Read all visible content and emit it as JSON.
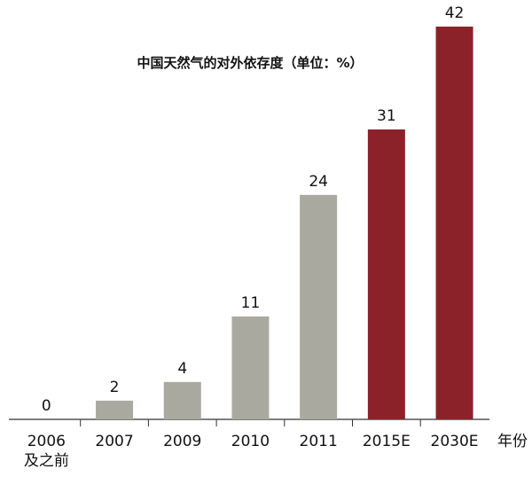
{
  "chart_data": {
    "type": "bar",
    "title": "中国天然气的对外依存度（单位：%）",
    "categories": [
      "2006\n及之前",
      "2007",
      "2009",
      "2010",
      "2011",
      "2015E",
      "2030E"
    ],
    "values": [
      0,
      2,
      4,
      11,
      24,
      31,
      42
    ],
    "colors": [
      "#a9a99f",
      "#a9a99f",
      "#a9a99f",
      "#a9a99f",
      "#a9a99f",
      "#8c2229",
      "#8c2229"
    ],
    "x_label": "年份"
  }
}
